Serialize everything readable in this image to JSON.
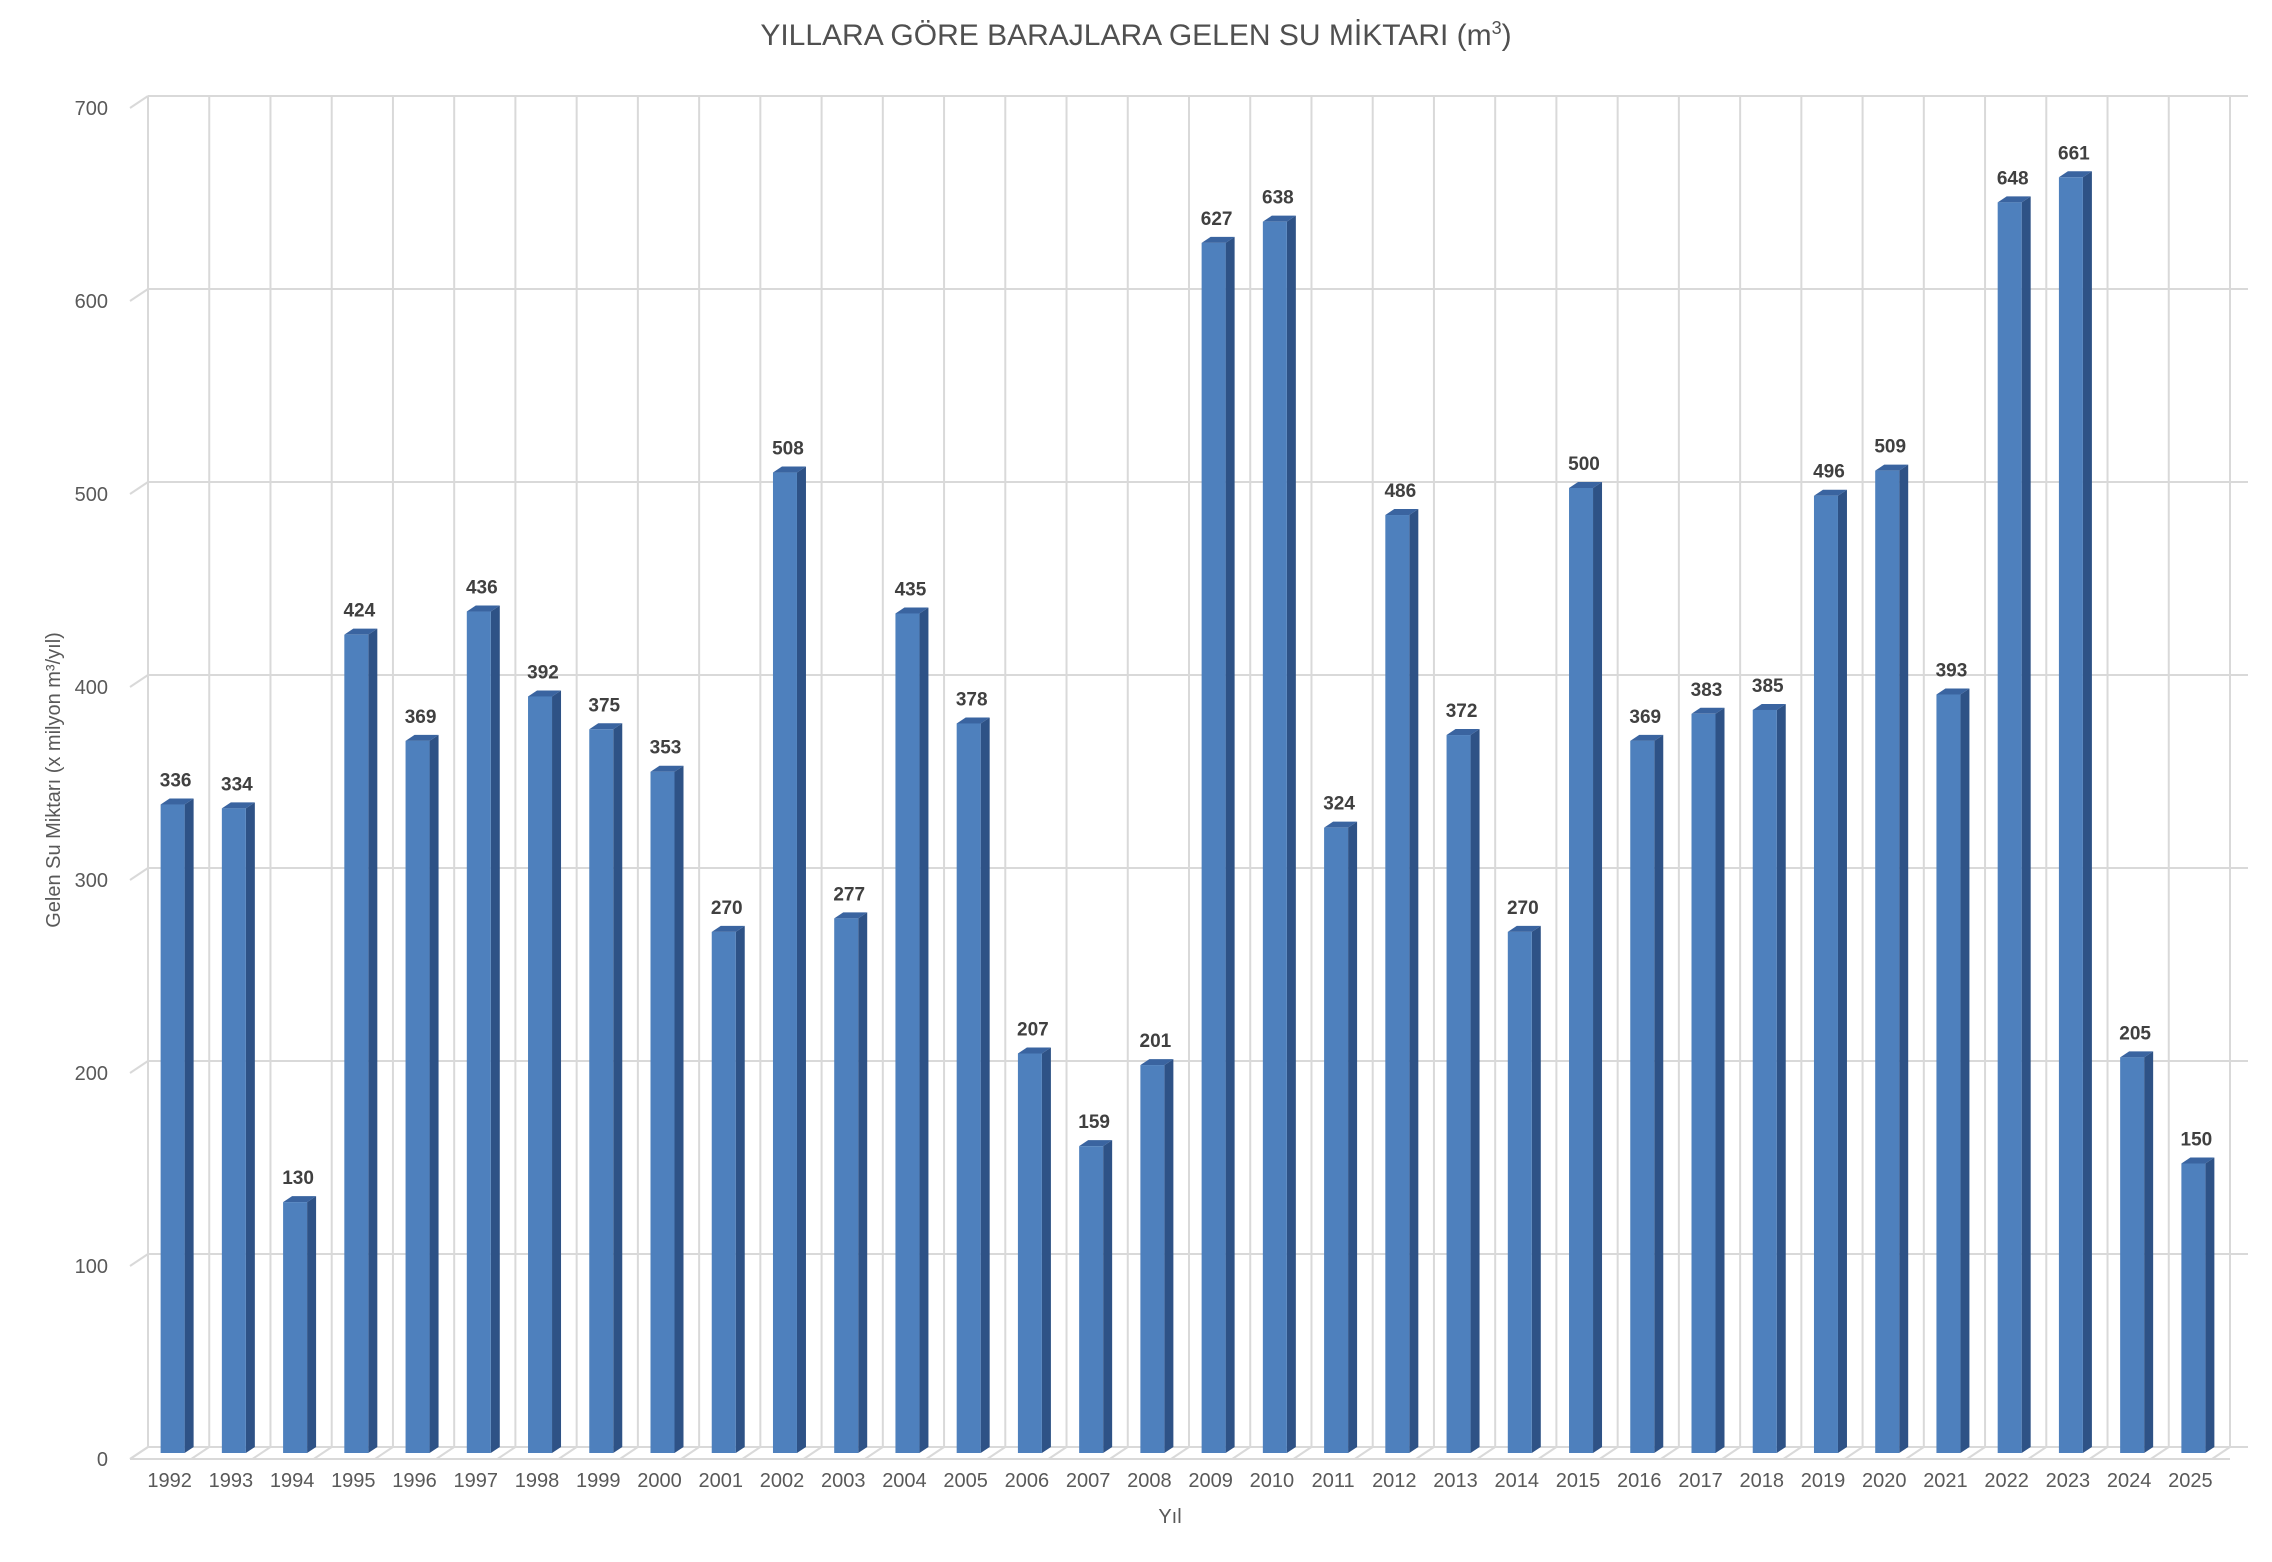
{
  "chart_data": {
    "type": "bar",
    "title": "YILLARA GÖRE BARAJLARA GELEN SU MİKTARI (m",
    "title_sup": "3",
    "title_suffix": ")",
    "xlabel": "Yıl",
    "ylabel": "Gelen Su Miktarı (x milyon m³/yıl)",
    "ylim": [
      0,
      700
    ],
    "yticks": [
      0,
      100,
      200,
      300,
      400,
      500,
      600,
      700
    ],
    "grid": true,
    "legend": "none",
    "colors": {
      "bar_front": "#4e80bd",
      "bar_side": "#2e5286",
      "bar_top": "#3a64a0",
      "grid": "#d9d9d9",
      "label": "#404040",
      "axis_text": "#595959"
    },
    "categories": [
      "1992",
      "1993",
      "1994",
      "1995",
      "1996",
      "1997",
      "1998",
      "1999",
      "2000",
      "2001",
      "2002",
      "2003",
      "2004",
      "2005",
      "2006",
      "2007",
      "2008",
      "2009",
      "2010",
      "2011",
      "2012",
      "2013",
      "2014",
      "2015",
      "2016",
      "2017",
      "2018",
      "2019",
      "2020",
      "2021",
      "2022",
      "2023",
      "2024",
      "2025"
    ],
    "values": [
      336,
      334,
      130,
      424,
      369,
      436,
      392,
      375,
      353,
      270,
      508,
      277,
      435,
      378,
      207,
      159,
      201,
      627,
      638,
      324,
      486,
      372,
      270,
      500,
      369,
      383,
      385,
      496,
      509,
      393,
      648,
      661,
      205,
      150
    ]
  }
}
